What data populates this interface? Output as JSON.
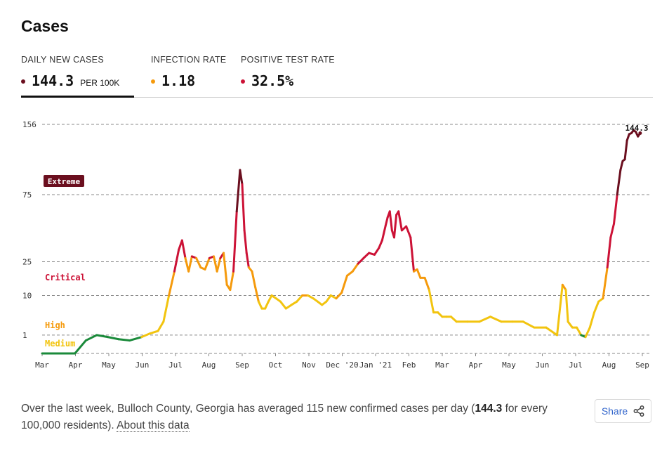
{
  "title": "Cases",
  "tabs": [
    {
      "label": "DAILY NEW CASES",
      "value": "144.3",
      "unit": "PER 100K",
      "dot_color": "#6b0f1f",
      "active": true
    },
    {
      "label": "INFECTION RATE",
      "value": "1.18",
      "dot_color": "#f59a0c",
      "active": false
    },
    {
      "label": "POSITIVE TEST RATE",
      "value": "32.5%",
      "dot_color": "#cc1236",
      "active": false
    }
  ],
  "chart_data": {
    "type": "line",
    "y_scale": "sqrt",
    "ylim": [
      0,
      156
    ],
    "y_ticks": [
      "1",
      "10",
      "25",
      "75",
      "156"
    ],
    "x_ticks": [
      "Mar",
      "Apr",
      "May",
      "Jun",
      "Jul",
      "Aug",
      "Sep",
      "Oct",
      "Nov",
      "Dec '20",
      "Jan '21",
      "Feb",
      "Mar",
      "Apr",
      "May",
      "Jun",
      "Jul",
      "Aug",
      "Sep"
    ],
    "x_start": "2020-03-01",
    "x_end": "2021-09-01",
    "end_label": "144.3",
    "zones": [
      {
        "name": "Extreme",
        "min": 75,
        "color": "#6b0f1f"
      },
      {
        "name": "Critical",
        "min": 25,
        "color": "#cc1236"
      },
      {
        "name": "High",
        "min": 10,
        "color": "#f59a0c"
      },
      {
        "name": "Medium",
        "min": 1,
        "color": "#f2c40f"
      },
      {
        "name": "",
        "min": 0,
        "color": "#1a8a3a"
      }
    ],
    "series": [
      {
        "x": [
          "2020-03-01",
          "2020-03-31",
          "2020-04-10",
          "2020-04-20",
          "2020-04-30",
          "2020-05-10",
          "2020-05-20",
          "2020-05-31",
          "2020-06-08",
          "2020-06-15",
          "2020-06-20",
          "2020-06-25",
          "2020-06-30",
          "2020-07-04",
          "2020-07-07",
          "2020-07-10",
          "2020-07-13",
          "2020-07-16",
          "2020-07-20",
          "2020-07-24",
          "2020-07-28",
          "2020-08-01",
          "2020-08-05",
          "2020-08-08",
          "2020-08-11",
          "2020-08-14",
          "2020-08-17",
          "2020-08-20",
          "2020-08-23",
          "2020-08-26",
          "2020-08-29",
          "2020-08-31",
          "2020-09-02",
          "2020-09-04",
          "2020-09-06",
          "2020-09-09",
          "2020-09-12",
          "2020-09-15",
          "2020-09-18",
          "2020-09-21",
          "2020-09-24",
          "2020-09-27",
          "2020-10-01",
          "2020-10-05",
          "2020-10-10",
          "2020-10-15",
          "2020-10-20",
          "2020-10-25",
          "2020-10-30",
          "2020-11-04",
          "2020-11-08",
          "2020-11-12",
          "2020-11-16",
          "2020-11-20",
          "2020-11-25",
          "2020-11-30",
          "2020-12-05",
          "2020-12-10",
          "2020-12-15",
          "2020-12-20",
          "2020-12-25",
          "2020-12-30",
          "2021-01-03",
          "2021-01-06",
          "2021-01-09",
          "2021-01-11",
          "2021-01-13",
          "2021-01-15",
          "2021-01-17",
          "2021-01-19",
          "2021-01-21",
          "2021-01-24",
          "2021-01-28",
          "2021-02-01",
          "2021-02-04",
          "2021-02-07",
          "2021-02-10",
          "2021-02-14",
          "2021-02-18",
          "2021-02-22",
          "2021-02-26",
          "2021-03-02",
          "2021-03-06",
          "2021-03-10",
          "2021-03-15",
          "2021-03-25",
          "2021-04-05",
          "2021-04-15",
          "2021-04-25",
          "2021-05-05",
          "2021-05-15",
          "2021-05-25",
          "2021-06-05",
          "2021-06-15",
          "2021-06-20",
          "2021-06-23",
          "2021-06-25",
          "2021-06-29",
          "2021-07-03",
          "2021-07-07",
          "2021-07-11",
          "2021-07-15",
          "2021-07-19",
          "2021-07-23",
          "2021-07-27",
          "2021-07-31",
          "2021-08-03",
          "2021-08-06",
          "2021-08-09",
          "2021-08-12",
          "2021-08-14",
          "2021-08-16",
          "2021-08-18",
          "2021-08-20",
          "2021-08-22",
          "2021-08-24",
          "2021-08-26",
          "2021-08-28",
          "2021-08-30"
        ],
        "y": [
          0,
          0,
          0.5,
          1,
          0.8,
          0.6,
          0.5,
          0.8,
          1.2,
          1.5,
          3,
          10,
          20,
          32,
          38,
          27,
          20,
          28,
          27,
          22,
          21,
          27,
          28,
          20,
          27,
          30,
          14,
          12,
          20,
          60,
          100,
          85,
          45,
          30,
          22,
          20,
          13,
          8,
          6,
          6,
          8,
          10,
          9,
          8,
          6,
          7,
          8,
          10,
          10,
          9,
          8,
          7,
          8,
          10,
          9,
          11,
          18,
          20,
          24,
          27,
          30,
          29,
          33,
          38,
          48,
          55,
          60,
          45,
          40,
          57,
          60,
          45,
          48,
          40,
          20,
          21,
          17,
          17,
          12,
          5,
          5,
          4,
          4,
          4,
          3,
          3,
          3,
          4,
          3,
          3,
          3,
          2,
          2,
          1,
          14,
          12,
          3,
          2,
          2,
          1,
          0.8,
          2,
          5,
          8,
          9,
          22,
          40,
          50,
          75,
          100,
          110,
          112,
          135,
          143,
          144.3,
          148,
          146,
          140,
          144.3
        ]
      }
    ]
  },
  "summary": {
    "prefix": "Over the last week, Bulloch County, Georgia has averaged 115 new confirmed cases per day (",
    "bold": "144.3",
    "suffix": " for every 100,000 residents). ",
    "link": "About this data"
  },
  "share": {
    "label": "Share"
  }
}
